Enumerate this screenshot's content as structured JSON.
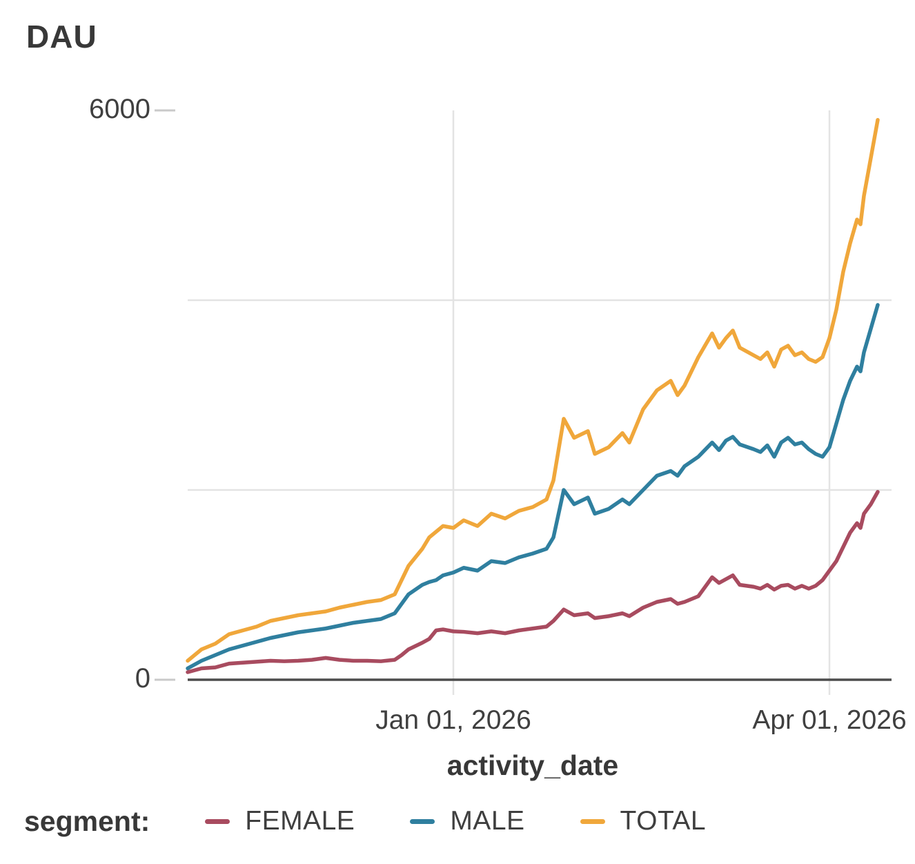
{
  "chart_data": {
    "type": "line",
    "title": "DAU",
    "xlabel": "activity_date",
    "legend_title": "segment:",
    "legend_position": "bottom",
    "grid": true,
    "ylim": [
      0,
      6000
    ],
    "yticks": [
      {
        "value": 0,
        "label": "0"
      },
      {
        "value": 6000,
        "label": "6000"
      }
    ],
    "gridlines_y": [
      2000,
      4000
    ],
    "edge_ticks_y": [
      0,
      6000
    ],
    "xticks": [
      {
        "pos": 0.385,
        "label": "Jan 01, 2026"
      },
      {
        "pos": 0.93,
        "label": "Apr 01, 2026"
      }
    ],
    "x": [
      0.0,
      0.02,
      0.04,
      0.06,
      0.08,
      0.1,
      0.12,
      0.14,
      0.16,
      0.18,
      0.2,
      0.22,
      0.24,
      0.26,
      0.28,
      0.3,
      0.31,
      0.32,
      0.34,
      0.35,
      0.36,
      0.37,
      0.385,
      0.4,
      0.42,
      0.44,
      0.46,
      0.48,
      0.5,
      0.52,
      0.53,
      0.545,
      0.56,
      0.58,
      0.59,
      0.61,
      0.63,
      0.64,
      0.66,
      0.68,
      0.7,
      0.71,
      0.72,
      0.74,
      0.76,
      0.77,
      0.78,
      0.79,
      0.8,
      0.82,
      0.83,
      0.84,
      0.85,
      0.86,
      0.87,
      0.88,
      0.89,
      0.9,
      0.91,
      0.92,
      0.93,
      0.94,
      0.95,
      0.96,
      0.97,
      0.975,
      0.98,
      0.99,
      1.0
    ],
    "series": [
      {
        "name": "FEMALE",
        "color": "#a84b5f",
        "values": [
          80,
          120,
          130,
          170,
          180,
          190,
          200,
          195,
          200,
          210,
          230,
          210,
          200,
          200,
          195,
          210,
          260,
          320,
          390,
          430,
          520,
          530,
          510,
          505,
          490,
          510,
          490,
          520,
          540,
          560,
          620,
          740,
          680,
          700,
          650,
          670,
          700,
          670,
          760,
          820,
          850,
          800,
          820,
          880,
          1080,
          1020,
          1060,
          1100,
          1000,
          980,
          960,
          1000,
          950,
          990,
          1000,
          960,
          990,
          960,
          990,
          1050,
          1150,
          1250,
          1400,
          1550,
          1650,
          1600,
          1750,
          1850,
          1980
        ]
      },
      {
        "name": "MALE",
        "color": "#2f7f9f",
        "values": [
          120,
          200,
          260,
          320,
          360,
          400,
          440,
          470,
          500,
          520,
          540,
          570,
          600,
          620,
          640,
          700,
          800,
          900,
          1000,
          1030,
          1050,
          1100,
          1130,
          1180,
          1150,
          1250,
          1230,
          1290,
          1330,
          1380,
          1500,
          2000,
          1850,
          1920,
          1750,
          1800,
          1900,
          1850,
          2000,
          2150,
          2200,
          2150,
          2250,
          2350,
          2500,
          2420,
          2520,
          2560,
          2480,
          2430,
          2400,
          2470,
          2350,
          2500,
          2550,
          2480,
          2500,
          2430,
          2380,
          2350,
          2450,
          2700,
          2950,
          3150,
          3300,
          3250,
          3450,
          3700,
          3950
        ]
      },
      {
        "name": "TOTAL",
        "color": "#f0a73b",
        "values": [
          200,
          320,
          380,
          480,
          520,
          560,
          620,
          650,
          680,
          700,
          720,
          760,
          790,
          820,
          840,
          900,
          1050,
          1200,
          1380,
          1500,
          1560,
          1620,
          1600,
          1680,
          1620,
          1750,
          1700,
          1780,
          1820,
          1900,
          2100,
          2750,
          2550,
          2620,
          2380,
          2450,
          2600,
          2500,
          2850,
          3050,
          3150,
          3000,
          3100,
          3400,
          3650,
          3500,
          3600,
          3680,
          3500,
          3420,
          3380,
          3450,
          3300,
          3480,
          3520,
          3420,
          3450,
          3380,
          3350,
          3400,
          3600,
          3900,
          4300,
          4600,
          4850,
          4800,
          5100,
          5500,
          5900
        ]
      }
    ],
    "colors": {
      "grid": "#e3e3e3",
      "axis": "#4c4c4c",
      "text": "#3b3b3b"
    }
  }
}
